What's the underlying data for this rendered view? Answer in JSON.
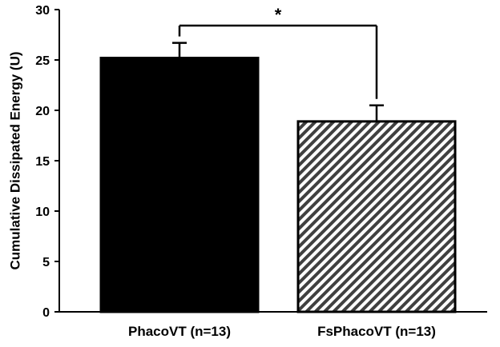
{
  "chart_data": {
    "type": "bar",
    "title": "",
    "xlabel": "",
    "ylabel": "Cumulative Dissipated Energy (U)",
    "ylim": [
      0,
      30
    ],
    "yticks": [
      0,
      5,
      10,
      15,
      20,
      25,
      30
    ],
    "ytick_labels": [
      "0",
      "5",
      "10",
      "15",
      "20",
      "25",
      "30"
    ],
    "categories": [
      "PhacoVT (n=13)",
      "FsPhacoVT (n=13)"
    ],
    "values": [
      25.2,
      18.9
    ],
    "error_upper": [
      1.5,
      1.6
    ],
    "bar_fills": [
      "solid-black",
      "diagonal-hatch"
    ],
    "grid": false,
    "legend": "none",
    "significance": {
      "between": [
        0,
        1
      ],
      "label": "*"
    }
  },
  "colors": {
    "bar_fill": "#000000",
    "hatch_fill": "#ffffff",
    "axis": "#000000"
  }
}
